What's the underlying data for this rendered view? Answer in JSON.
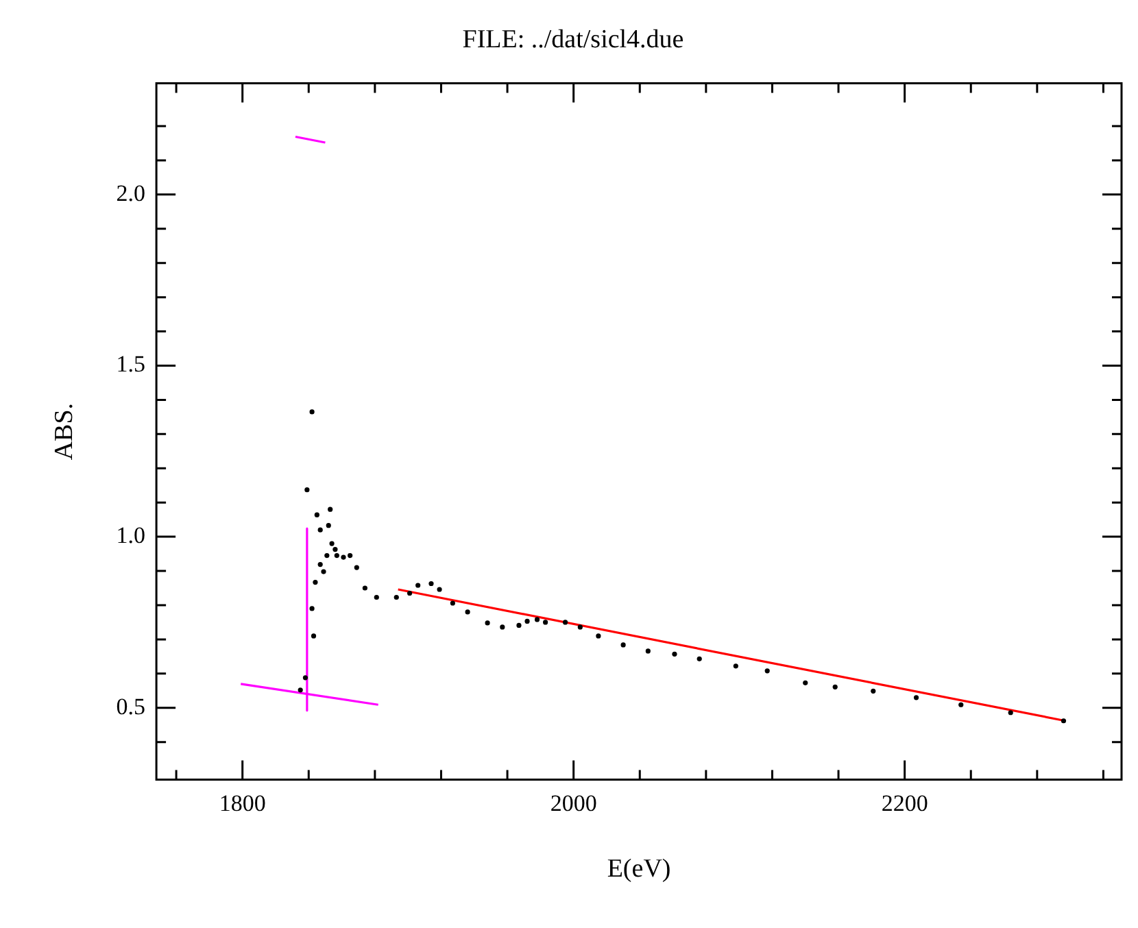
{
  "chart_data": {
    "type": "scatter",
    "title": "FILE: ../dat/sicl4.due",
    "xlabel": "E(eV)",
    "ylabel": "ABS.",
    "xlim": [
      1748,
      2331
    ],
    "ylim": [
      0.29,
      2.325
    ],
    "xticks": [
      {
        "value": 1760,
        "label": null
      },
      1800,
      {
        "value": 1840,
        "label": null
      },
      {
        "value": 1880,
        "label": null
      },
      {
        "value": 1920,
        "label": null
      },
      {
        "value": 1960,
        "label": null
      },
      2000,
      {
        "value": 2040,
        "label": null
      },
      {
        "value": 2080,
        "label": null
      },
      {
        "value": 2120,
        "label": null
      },
      {
        "value": 2160,
        "label": null
      },
      2200,
      {
        "value": 2240,
        "label": null
      },
      {
        "value": 2280,
        "label": null
      },
      {
        "value": 2320,
        "label": null
      }
    ],
    "yticks": [
      {
        "value": 0.4,
        "label": null
      },
      0.5,
      {
        "value": 0.6,
        "label": null
      },
      {
        "value": 0.7,
        "label": null
      },
      {
        "value": 0.8,
        "label": null
      },
      {
        "value": 0.9,
        "label": null
      },
      {
        "value": 1,
        "label": "1.0"
      },
      {
        "value": 1.1,
        "label": null
      },
      {
        "value": 1.2,
        "label": null
      },
      {
        "value": 1.3,
        "label": null
      },
      {
        "value": 1.4,
        "label": null
      },
      1.5,
      {
        "value": 1.6,
        "label": null
      },
      {
        "value": 1.7,
        "label": null
      },
      {
        "value": 1.8,
        "label": null
      },
      {
        "value": 1.9,
        "label": null
      },
      {
        "value": 2,
        "label": "2.0"
      },
      {
        "value": 2.1,
        "label": null
      },
      {
        "value": 2.2,
        "label": null
      }
    ],
    "grid": false,
    "legend": false,
    "series": [
      {
        "marker": "circle",
        "color": "#000000",
        "x": [
          1835,
          1838,
          1839,
          1842,
          1842,
          1843,
          1844,
          1845,
          1847,
          1847,
          1849,
          1851,
          1852,
          1853,
          1854,
          1856,
          1857,
          1861,
          1865,
          1869,
          1874,
          1881,
          1893,
          1901,
          1906,
          1914,
          1919,
          1927,
          1936,
          1948,
          1957,
          1967,
          1972,
          1978,
          1983,
          1995,
          2004,
          2015,
          2030,
          2045,
          2061,
          2076,
          2098,
          2117,
          2140,
          2158,
          2181,
          2207,
          2234,
          2264,
          2296
        ],
        "values": [
          0.552,
          0.588,
          1.137,
          1.365,
          0.79,
          0.71,
          0.867,
          1.064,
          0.919,
          1.02,
          0.898,
          0.945,
          1.033,
          1.08,
          0.98,
          0.963,
          0.945,
          0.94,
          0.945,
          0.91,
          0.85,
          0.823,
          0.823,
          0.835,
          0.858,
          0.863,
          0.846,
          0.806,
          0.78,
          0.748,
          0.736,
          0.741,
          0.753,
          0.758,
          0.75,
          0.75,
          0.736,
          0.71,
          0.684,
          0.666,
          0.657,
          0.643,
          0.622,
          0.608,
          0.573,
          0.561,
          0.549,
          0.53,
          0.509,
          0.486,
          0.462
        ]
      },
      {
        "type": "line",
        "marker": "none",
        "color": "#ff00ff",
        "x": [
          1799,
          1882
        ],
        "values": [
          0.57,
          0.509
        ]
      },
      {
        "type": "line",
        "marker": "none",
        "color": "#ff00ff",
        "x": [
          1839,
          1839
        ],
        "values": [
          1.024,
          0.492
        ]
      },
      {
        "type": "line",
        "marker": "none",
        "color": "#ff00ff",
        "x": [
          1832,
          1850
        ],
        "values": [
          2.169,
          2.152
        ]
      },
      {
        "type": "line",
        "marker": "none",
        "color": "#ff0000",
        "x": [
          1894,
          2297
        ],
        "values": [
          0.846,
          0.462
        ]
      }
    ]
  }
}
